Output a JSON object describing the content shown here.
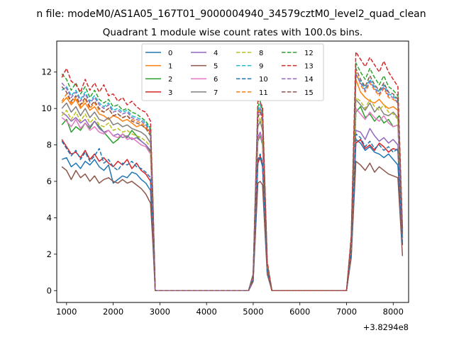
{
  "chart_data": {
    "type": "line",
    "suptitle": "n file: modeM0/AS1A05_167T01_9000004940_34579cztM0_level2_quad_clean",
    "title": "Quadrant 1 module wise count rates with 100.0s bins.",
    "xlabel": "",
    "ylabel": "",
    "x_offset_label": "+3.8294e8",
    "xlim": [
      790,
      8330
    ],
    "ylim": [
      -0.65,
      13.7
    ],
    "xticks": [
      1000,
      2000,
      3000,
      4000,
      5000,
      6000,
      7000,
      8000
    ],
    "xtick_labels": [
      "1000",
      "2000",
      "3000",
      "4000",
      "5000",
      "6000",
      "7000",
      "8000"
    ],
    "yticks": [
      0,
      2,
      4,
      6,
      8,
      10,
      12
    ],
    "ytick_labels": [
      "0",
      "2",
      "4",
      "6",
      "8",
      "10",
      "12"
    ],
    "legend": {
      "location": "upper center",
      "ncol": 4
    },
    "x": [
      900,
      1000,
      1100,
      1200,
      1300,
      1400,
      1500,
      1600,
      1700,
      1800,
      1900,
      2000,
      2100,
      2200,
      2300,
      2400,
      2500,
      2600,
      2700,
      2800,
      2850,
      2900,
      3000,
      3500,
      4000,
      4500,
      4900,
      5000,
      5100,
      5150,
      5200,
      5300,
      5400,
      5500,
      6000,
      6500,
      7000,
      7100,
      7200,
      7300,
      7400,
      7500,
      7600,
      7700,
      7800,
      7900,
      8000,
      8100,
      8200
    ],
    "series": [
      {
        "name": "0",
        "color": "#1f77b4",
        "dash": "solid",
        "values": [
          7.2,
          7.3,
          6.8,
          7.0,
          6.7,
          7.1,
          6.9,
          7.2,
          6.8,
          6.6,
          6.9,
          5.9,
          6.1,
          6.3,
          6.2,
          6.5,
          6.4,
          6.1,
          5.9,
          5.5,
          3.0,
          0,
          0,
          0,
          0,
          0,
          0,
          0.6,
          7.0,
          7.3,
          6.8,
          1.1,
          0,
          0,
          0,
          0,
          0,
          2.0,
          8.3,
          8.1,
          7.7,
          7.9,
          7.6,
          7.5,
          7.3,
          7.5,
          7.2,
          6.9,
          2.6
        ]
      },
      {
        "name": "1",
        "color": "#ff7f0e",
        "dash": "solid",
        "values": [
          10.3,
          10.6,
          10.2,
          10.5,
          10.0,
          10.3,
          9.9,
          10.1,
          9.7,
          9.6,
          9.4,
          9.6,
          9.5,
          9.3,
          9.4,
          9.2,
          9.0,
          9.1,
          8.9,
          8.7,
          5.0,
          0,
          0,
          0,
          0,
          0,
          0,
          0.8,
          9.8,
          10.0,
          9.6,
          1.4,
          0,
          0,
          0,
          0,
          0,
          2.6,
          11.6,
          10.9,
          10.6,
          10.4,
          10.3,
          10.5,
          10.2,
          10.0,
          10.1,
          9.9,
          3.0
        ]
      },
      {
        "name": "2",
        "color": "#2ca02c",
        "dash": "solid",
        "values": [
          9.1,
          9.4,
          8.7,
          9.0,
          8.8,
          9.2,
          8.9,
          9.3,
          9.0,
          8.7,
          8.4,
          8.1,
          8.3,
          8.6,
          8.4,
          8.8,
          8.5,
          8.2,
          8.0,
          7.6,
          4.2,
          0,
          0,
          0,
          0,
          0,
          0,
          0.7,
          8.2,
          8.5,
          8.0,
          1.3,
          0,
          0,
          0,
          0,
          0,
          2.3,
          9.8,
          10.1,
          9.5,
          9.7,
          9.3,
          9.6,
          9.2,
          9.4,
          9.0,
          9.1,
          2.9
        ]
      },
      {
        "name": "3",
        "color": "#d62728",
        "dash": "solid",
        "values": [
          8.3,
          7.9,
          7.5,
          7.6,
          7.3,
          7.7,
          7.2,
          7.5,
          7.1,
          7.3,
          7.0,
          6.8,
          7.1,
          6.9,
          7.2,
          6.7,
          7.0,
          6.6,
          6.4,
          6.0,
          3.4,
          0,
          0,
          0,
          0,
          0,
          0,
          0.6,
          7.0,
          7.4,
          6.9,
          1.1,
          0,
          0,
          0,
          0,
          0,
          2.0,
          8.1,
          8.3,
          7.8,
          8.0,
          7.7,
          8.1,
          7.9,
          7.6,
          7.8,
          7.7,
          2.5
        ]
      },
      {
        "name": "4",
        "color": "#9467bd",
        "dash": "solid",
        "values": [
          9.8,
          9.6,
          9.3,
          9.5,
          9.2,
          9.4,
          9.0,
          9.3,
          8.9,
          8.7,
          8.8,
          8.5,
          8.6,
          8.4,
          8.5,
          8.3,
          8.4,
          8.2,
          8.0,
          7.7,
          4.3,
          0,
          0,
          0,
          0,
          0,
          0,
          0.7,
          8.4,
          8.7,
          8.2,
          1.3,
          0,
          0,
          0,
          0,
          0,
          2.4,
          8.8,
          8.7,
          8.3,
          8.9,
          8.5,
          8.2,
          8.4,
          8.1,
          8.3,
          8.0,
          2.7
        ]
      },
      {
        "name": "5",
        "color": "#8c564b",
        "dash": "solid",
        "values": [
          6.8,
          6.6,
          6.1,
          6.6,
          6.2,
          6.4,
          6.0,
          6.3,
          5.9,
          6.1,
          6.2,
          6.0,
          5.9,
          6.1,
          5.9,
          6.0,
          5.8,
          5.6,
          5.3,
          4.8,
          2.6,
          0,
          0,
          0,
          0,
          0,
          0,
          0.5,
          5.9,
          6.0,
          5.8,
          0.9,
          0,
          0,
          0,
          0,
          0,
          1.8,
          7.1,
          6.9,
          6.6,
          7.0,
          6.5,
          6.8,
          6.6,
          6.4,
          6.3,
          6.2,
          1.9
        ]
      },
      {
        "name": "6",
        "color": "#e377c2",
        "dash": "solid",
        "values": [
          9.5,
          9.3,
          9.0,
          9.4,
          8.9,
          9.2,
          8.8,
          9.0,
          8.7,
          8.6,
          8.8,
          8.5,
          8.4,
          8.6,
          8.3,
          8.4,
          8.2,
          8.0,
          7.9,
          7.5,
          4.1,
          0,
          0,
          0,
          0,
          0,
          0,
          0.7,
          8.3,
          8.6,
          8.1,
          1.2,
          0,
          0,
          0,
          0,
          0,
          2.3,
          10.0,
          9.7,
          9.4,
          9.8,
          9.5,
          9.3,
          9.6,
          9.2,
          9.0,
          9.1,
          2.8
        ]
      },
      {
        "name": "7",
        "color": "#7f7f7f",
        "dash": "solid",
        "values": [
          10.0,
          10.3,
          9.8,
          10.1,
          9.6,
          10.0,
          9.5,
          9.8,
          9.4,
          9.3,
          9.5,
          9.1,
          9.2,
          9.0,
          9.1,
          8.9,
          8.8,
          8.7,
          8.5,
          8.1,
          4.5,
          0,
          0,
          0,
          0,
          0,
          0,
          0.8,
          9.0,
          9.3,
          8.8,
          1.3,
          0,
          0,
          0,
          0,
          0,
          2.5,
          10.5,
          10.2,
          9.9,
          10.3,
          9.8,
          10.1,
          9.7,
          9.6,
          9.8,
          9.5,
          2.9
        ]
      },
      {
        "name": "8",
        "color": "#bcbd22",
        "dash": "dashed",
        "values": [
          9.6,
          9.9,
          9.4,
          9.8,
          9.3,
          9.7,
          9.2,
          9.5,
          9.1,
          9.0,
          9.2,
          8.8,
          8.9,
          8.7,
          8.8,
          8.6,
          8.5,
          8.4,
          8.2,
          7.9,
          4.4,
          0,
          0,
          0,
          0,
          0,
          0,
          0.8,
          9.2,
          9.5,
          9.0,
          1.3,
          0,
          0,
          0,
          0,
          0,
          2.5,
          10.6,
          10.4,
          10.0,
          10.5,
          10.1,
          9.9,
          10.2,
          9.8,
          9.7,
          9.4,
          2.9
        ]
      },
      {
        "name": "9",
        "color": "#17becf",
        "dash": "dashed",
        "values": [
          11.0,
          11.2,
          10.7,
          11.0,
          10.5,
          10.9,
          10.4,
          10.7,
          10.3,
          10.1,
          10.3,
          9.9,
          10.0,
          9.8,
          9.9,
          9.6,
          9.5,
          9.4,
          9.2,
          8.8,
          4.8,
          0,
          0,
          0,
          0,
          0,
          0,
          0.9,
          9.9,
          10.2,
          9.7,
          1.5,
          0,
          0,
          0,
          0,
          0,
          2.8,
          11.8,
          11.5,
          11.1,
          11.6,
          11.2,
          10.9,
          11.3,
          10.8,
          10.7,
          10.4,
          3.2
        ]
      },
      {
        "name": "10",
        "color": "#1f77b4",
        "dash": "dashed",
        "values": [
          8.2,
          7.8,
          7.4,
          7.7,
          7.2,
          7.6,
          7.1,
          7.4,
          7.8,
          7.0,
          7.2,
          6.8,
          6.6,
          7.0,
          6.9,
          7.1,
          6.8,
          6.7,
          6.5,
          6.2,
          3.5,
          0,
          0,
          0,
          0,
          0,
          0,
          0.6,
          7.2,
          7.5,
          7.0,
          1.1,
          0,
          0,
          0,
          0,
          0,
          2.1,
          8.6,
          8.4,
          7.9,
          8.2,
          7.8,
          8.0,
          7.7,
          7.9,
          7.6,
          7.8,
          2.5
        ]
      },
      {
        "name": "11",
        "color": "#ff7f0e",
        "dash": "dashed",
        "values": [
          10.4,
          10.8,
          10.3,
          10.6,
          10.1,
          10.5,
          10.0,
          10.3,
          9.9,
          9.8,
          10.0,
          9.6,
          9.7,
          9.5,
          9.6,
          9.4,
          9.3,
          9.2,
          9.0,
          8.6,
          4.7,
          0,
          0,
          0,
          0,
          0,
          0,
          0.8,
          9.6,
          9.9,
          9.4,
          1.4,
          0,
          0,
          0,
          0,
          0,
          2.7,
          12.0,
          11.3,
          10.9,
          11.4,
          11.0,
          10.7,
          11.1,
          10.6,
          10.5,
          10.3,
          3.1
        ]
      },
      {
        "name": "12",
        "color": "#2ca02c",
        "dash": "dashed",
        "values": [
          11.9,
          11.6,
          11.0,
          11.4,
          10.8,
          11.2,
          10.6,
          11.0,
          10.5,
          10.3,
          10.5,
          10.1,
          10.2,
          9.9,
          10.0,
          9.8,
          9.7,
          9.5,
          9.3,
          8.9,
          4.9,
          0,
          0,
          0,
          0,
          0,
          0,
          0.9,
          10.1,
          10.4,
          9.9,
          1.5,
          0,
          0,
          0,
          0,
          0,
          2.9,
          12.5,
          12.0,
          11.6,
          12.2,
          11.7,
          11.3,
          11.8,
          11.2,
          11.0,
          10.7,
          3.3
        ]
      },
      {
        "name": "13",
        "color": "#d62728",
        "dash": "dashed",
        "values": [
          11.7,
          12.2,
          11.5,
          11.3,
          10.9,
          11.6,
          11.0,
          11.4,
          10.9,
          11.3,
          10.7,
          10.8,
          10.4,
          10.6,
          10.2,
          10.4,
          10.1,
          9.9,
          9.8,
          9.3,
          5.1,
          0,
          0,
          0,
          0,
          0,
          0,
          0.9,
          10.4,
          10.3,
          10.1,
          1.6,
          0,
          0,
          0,
          0,
          0,
          3.0,
          13.1,
          12.7,
          12.3,
          12.8,
          12.4,
          12.0,
          12.6,
          12.0,
          11.6,
          11.2,
          3.4
        ]
      },
      {
        "name": "14",
        "color": "#9467bd",
        "dash": "dashed",
        "values": [
          11.4,
          11.1,
          10.6,
          10.9,
          10.4,
          10.8,
          10.3,
          10.6,
          10.2,
          10.0,
          10.2,
          9.8,
          9.9,
          9.7,
          9.8,
          9.5,
          9.4,
          9.3,
          9.1,
          8.7,
          4.8,
          0,
          0,
          0,
          0,
          0,
          0,
          0.8,
          9.7,
          10.0,
          9.5,
          1.4,
          0,
          0,
          0,
          0,
          0,
          2.7,
          11.9,
          11.4,
          11.0,
          11.5,
          11.1,
          10.8,
          11.2,
          10.7,
          10.6,
          10.3,
          3.1
        ]
      },
      {
        "name": "15",
        "color": "#8c564b",
        "dash": "dashed",
        "values": [
          11.2,
          10.9,
          10.4,
          10.7,
          10.2,
          10.6,
          10.1,
          10.4,
          10.0,
          9.8,
          10.0,
          9.6,
          9.7,
          9.5,
          9.6,
          9.3,
          9.2,
          9.1,
          8.9,
          8.5,
          4.7,
          0,
          0,
          0,
          0,
          0,
          0,
          0.8,
          9.5,
          9.8,
          9.3,
          1.4,
          0,
          0,
          0,
          0,
          0,
          2.6,
          12.2,
          11.6,
          11.2,
          11.8,
          11.3,
          11.0,
          11.4,
          10.9,
          10.8,
          10.5,
          3.0
        ]
      }
    ]
  }
}
